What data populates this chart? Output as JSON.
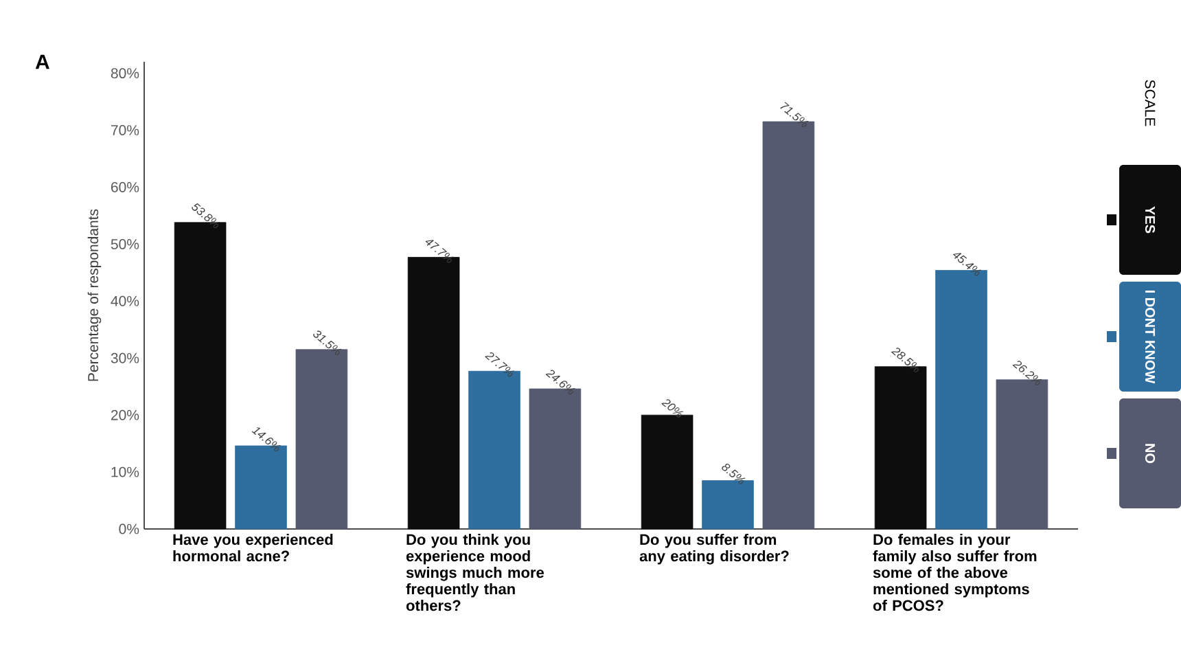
{
  "chart_data": {
    "type": "bar",
    "categories": [
      "Have you experienced hormonal acne?",
      "Do you think you experience mood swings much more frequently than others?",
      "Do you suffer from any eating disorder?",
      "Do females in your family also suffer from some of the above mentioned symptoms of PCOS?"
    ],
    "series": [
      {
        "name": "YES",
        "color": "#0d0d0d",
        "values": [
          53.8,
          47.7,
          20,
          28.5
        ],
        "value_labels": [
          "53.8%",
          "47.7%",
          "20%",
          "28.5%"
        ]
      },
      {
        "name": "I DONT KNOW",
        "color": "#2f6fa0",
        "values": [
          14.6,
          27.7,
          8.5,
          45.4
        ],
        "value_labels": [
          "14.6%",
          "27.7%",
          "8.5%",
          "45.4%"
        ]
      },
      {
        "name": "NO",
        "color": "#565a70",
        "values": [
          31.5,
          24.6,
          71.5,
          26.2
        ],
        "value_labels": [
          "31.5%",
          "24.6%",
          "71.5%",
          "26.2%"
        ]
      }
    ],
    "ylabel": "Percentage of respondants",
    "ylim": [
      0,
      82
    ],
    "yticks": [
      {
        "value": 0,
        "label": "0%"
      },
      {
        "value": 10,
        "label": "10%"
      },
      {
        "value": 20,
        "label": "20%"
      },
      {
        "value": 30,
        "label": "30%"
      },
      {
        "value": 40,
        "label": "40%"
      },
      {
        "value": 50,
        "label": "50%"
      },
      {
        "value": 60,
        "label": "60%"
      },
      {
        "value": 70,
        "label": "70%"
      },
      {
        "value": 80,
        "label": "80%"
      }
    ],
    "legend": "right",
    "legend_title": "SCALE",
    "annotations": [
      "A"
    ]
  }
}
